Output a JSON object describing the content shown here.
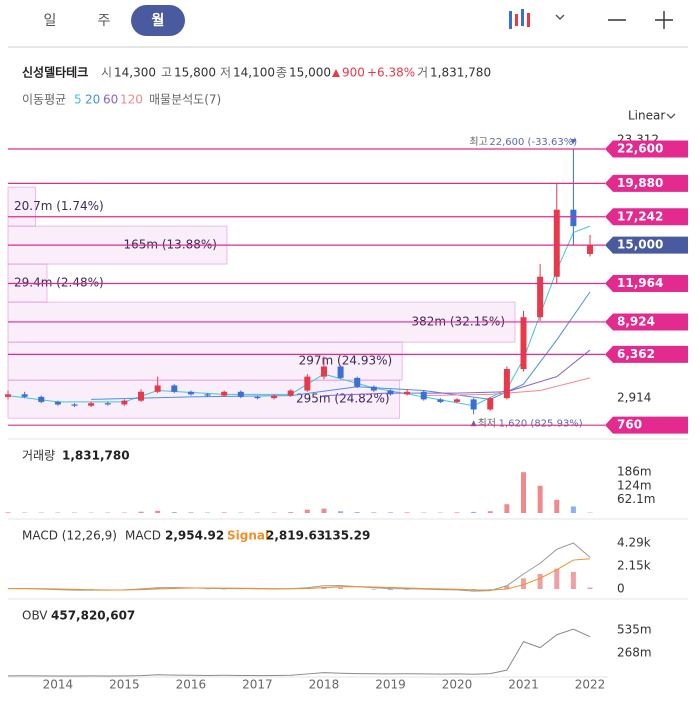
{
  "header": {
    "tabs": [
      "일",
      "주",
      "월"
    ],
    "selected": 2,
    "name": "신성델타테크",
    "quote": [
      {
        "label": "시",
        "value": "14,300"
      },
      {
        "label": "고",
        "value": "15,800"
      },
      {
        "label": "저",
        "value": "14,100"
      },
      {
        "label": "종",
        "value": "15,000"
      }
    ],
    "change": "900",
    "change_pct": "+6.38%",
    "change_color": "#e8394b",
    "volume_label": "거",
    "volume": "1,831,780",
    "ma_label": "이동평균",
    "profile_label": "매물분석도(7)",
    "scale": "Linear"
  },
  "chart_data": [
    {
      "type": "candlestick",
      "x": [
        2013.25,
        2013.5,
        2013.75,
        2014,
        2014.25,
        2014.5,
        2014.75,
        2015,
        2015.25,
        2015.5,
        2015.75,
        2016,
        2016.25,
        2016.5,
        2016.75,
        2017,
        2017.25,
        2017.5,
        2017.75,
        2018,
        2018.25,
        2018.5,
        2018.75,
        2019,
        2019.25,
        2019.5,
        2019.75,
        2020,
        2020.25,
        2020.5,
        2020.75,
        2021,
        2021.25,
        2021.5,
        2021.75,
        2022
      ],
      "open": [
        3000,
        3200,
        3000,
        2600,
        2400,
        2300,
        2500,
        2400,
        2700,
        3400,
        3900,
        3400,
        3200,
        3100,
        3400,
        3000,
        2900,
        3100,
        3500,
        4600,
        5400,
        4500,
        3800,
        3500,
        3200,
        3400,
        2800,
        2600,
        2800,
        2000,
        2900,
        5200,
        9300,
        12500,
        17800,
        14300
      ],
      "high": [
        3500,
        3400,
        3100,
        2700,
        2500,
        2600,
        2600,
        2800,
        3600,
        4600,
        4000,
        3500,
        3300,
        3500,
        3500,
        3100,
        3200,
        3600,
        4800,
        6200,
        5500,
        4600,
        3900,
        3600,
        3600,
        3500,
        2900,
        2900,
        2900,
        3000,
        5400,
        9800,
        13500,
        19880,
        22600,
        15800
      ],
      "low": [
        2800,
        2900,
        2500,
        2300,
        2200,
        2200,
        2300,
        2300,
        2600,
        3300,
        3300,
        3100,
        3000,
        3000,
        2900,
        2800,
        2800,
        3000,
        3400,
        4400,
        4400,
        3700,
        3400,
        3100,
        3100,
        2700,
        2500,
        2500,
        1620,
        1900,
        2800,
        5000,
        9000,
        12000,
        15000,
        14100
      ],
      "close": [
        3200,
        3000,
        2600,
        2400,
        2300,
        2500,
        2400,
        2700,
        3400,
        3900,
        3400,
        3200,
        3100,
        3400,
        3000,
        2900,
        3100,
        3500,
        4600,
        5400,
        4500,
        3800,
        3500,
        3200,
        3400,
        2800,
        2600,
        2800,
        2000,
        2900,
        5200,
        9300,
        12500,
        17800,
        16500,
        15000
      ],
      "up_color": "#e8394b",
      "down_color": "#3a6fd8",
      "xlim": [
        2013.25,
        2022.15
      ],
      "xticks": [
        2014,
        2015,
        2016,
        2017,
        2018,
        2019,
        2020,
        2021,
        2022
      ],
      "ylim": [
        300,
        23312
      ],
      "yticks": [
        {
          "value": 23312,
          "label": "23,312"
        },
        {
          "value": 2914,
          "label": "2,914"
        }
      ],
      "series": [
        {
          "name": "5",
          "color": "#3cc9d6",
          "x": [
            2013.25,
            2014,
            2015,
            2015.5,
            2016.5,
            2017.5,
            2018,
            2018.75,
            2019.5,
            2020.25,
            2020.75,
            2021,
            2021.25,
            2021.5,
            2021.75,
            2022
          ],
          "values": [
            3100,
            2600,
            2600,
            3500,
            3200,
            3200,
            4800,
            3700,
            3000,
            2300,
            3600,
            6000,
            9500,
            13000,
            16000,
            16500
          ]
        },
        {
          "name": "20",
          "color": "#4a90e2",
          "x": [
            2014.5,
            2016,
            2017.5,
            2018.5,
            2019.5,
            2020.5,
            2021,
            2021.5,
            2022
          ],
          "values": [
            2800,
            3000,
            3100,
            3800,
            3500,
            2800,
            4000,
            7500,
            11300
          ]
        },
        {
          "name": "60",
          "color": "#8a63d2",
          "x": [
            2018,
            2019,
            2020,
            2020.75,
            2021.5,
            2022
          ],
          "values": [
            3100,
            3300,
            3300,
            3400,
            4600,
            6700
          ]
        },
        {
          "name": "120",
          "color": "#f08a8a",
          "x": [
            2019.5,
            2020.5,
            2021.25,
            2022
          ],
          "values": [
            3100,
            3200,
            3500,
            4500
          ]
        }
      ],
      "profile": {
        "edges": [
          1314,
          4320,
          7325,
          10490,
          13500,
          16500,
          19586
        ],
        "values": [
          295,
          297,
          382,
          29.4,
          165,
          20.7
        ],
        "value_labels": [
          "295m (24.82%)",
          "297m (24.93%)",
          "382m (32.15%)",
          "29.4m (2.48%)",
          "165m (13.88%)",
          "20.7m (1.74%)"
        ]
      },
      "levels": {
        "values": [
          22600,
          19880,
          17242,
          15000,
          11964,
          8924,
          6362,
          760
        ],
        "value_labels": [
          "22,600",
          "19,880",
          "17,242",
          "15,000",
          "11,964",
          "8,924",
          "6,362",
          "760"
        ],
        "color": "#e32a8e",
        "current": 3,
        "current_color": "#4a5a9e"
      },
      "max_label": "최고",
      "max_text": "22,600 (-33.63%)",
      "min_label": "최저",
      "min_text": "1,620 (825.93%)"
    },
    {
      "type": "bar",
      "title": "거래량",
      "value_text": "1,831,780",
      "values": [
        3000000,
        2000000,
        2000000,
        2000000,
        2000000,
        1500000,
        2000000,
        2000000,
        6000000,
        10000000,
        4000000,
        3000000,
        2000000,
        3000000,
        2000000,
        2000000,
        2000000,
        4000000,
        15000000,
        20000000,
        8000000,
        4000000,
        3000000,
        3000000,
        3000000,
        2000000,
        2000000,
        3000000,
        5000000,
        8000000,
        40000000,
        186000000,
        124000000,
        60000000,
        30000000,
        1831780
      ],
      "ylim": [
        0,
        310000000
      ],
      "yticks": [
        {
          "value": 186000000,
          "label": "186m"
        },
        {
          "value": 124000000,
          "label": "124m"
        },
        {
          "value": 62100000,
          "label": "62.1m"
        }
      ]
    },
    {
      "type": "macd",
      "title": "MACD (12,26,9)",
      "macd_label": "MACD",
      "macd_text": "2,954.92",
      "signal_label": "Signal",
      "signal_text": "2,819.63",
      "hist_text": "135.29",
      "macd_color": "#9a9a9a",
      "signal_color": "#f0902a",
      "macd": [
        50,
        40,
        0,
        -60,
        -100,
        -110,
        -100,
        -80,
        0,
        120,
        130,
        100,
        60,
        40,
        50,
        20,
        0,
        20,
        120,
        300,
        320,
        220,
        120,
        40,
        20,
        0,
        -60,
        -80,
        -200,
        -150,
        300,
        1400,
        2400,
        3700,
        4290,
        2955
      ],
      "signal": [
        40,
        40,
        30,
        0,
        -40,
        -70,
        -90,
        -90,
        -60,
        0,
        60,
        90,
        90,
        80,
        70,
        50,
        30,
        25,
        50,
        130,
        200,
        220,
        190,
        140,
        90,
        50,
        10,
        -20,
        -80,
        -110,
        0,
        400,
        1000,
        1800,
        2700,
        2820
      ],
      "hist": [
        10,
        0,
        -30,
        -60,
        -60,
        -40,
        -10,
        10,
        60,
        120,
        70,
        10,
        -30,
        -40,
        -20,
        -30,
        -30,
        -5,
        70,
        170,
        120,
        0,
        -70,
        -100,
        -70,
        -50,
        -70,
        -60,
        -120,
        -40,
        300,
        1000,
        1400,
        1900,
        1590,
        135.29
      ],
      "ylim": [
        -560,
        5970
      ],
      "yticks": [
        {
          "value": 4290,
          "label": "4.29k"
        },
        {
          "value": 2150,
          "label": "2.15k"
        },
        0
      ]
    },
    {
      "type": "line",
      "title": "OBV",
      "value_text": "457,820,607",
      "color": "#8a8a8a",
      "values": [
        2000000,
        3000000,
        1000000,
        0,
        0,
        1000000,
        0,
        1000000,
        5000000,
        14000000,
        10000000,
        8000000,
        6000000,
        8000000,
        6000000,
        5000000,
        6000000,
        9000000,
        24000000,
        39000000,
        32000000,
        28000000,
        26000000,
        24000000,
        26000000,
        24000000,
        22000000,
        24000000,
        20000000,
        28000000,
        68000000,
        400000000,
        330000000,
        480000000,
        545000000,
        457820607
      ],
      "ylim": [
        0,
        826000000
      ],
      "yticks": [
        {
          "value": 535000000,
          "label": "535m"
        },
        {
          "value": 268000000,
          "label": "268m"
        }
      ]
    }
  ]
}
